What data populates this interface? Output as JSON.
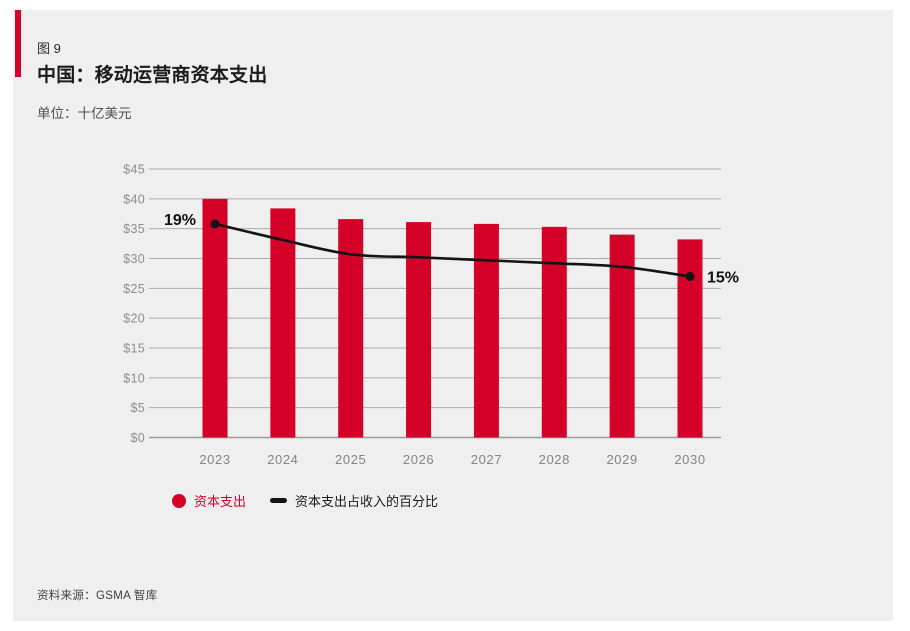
{
  "header": {
    "figure_label": "图 9",
    "title": "中国：移动运营商资本支出",
    "unit": "单位：十亿美元"
  },
  "legend": {
    "capex": "资本支出",
    "intensity": "资本支出占收入的百分比"
  },
  "footer": {
    "source": "资料来源：GSMA 智库"
  },
  "colors": {
    "accent": "#D50028",
    "bar": "#D50028",
    "line": "#141414",
    "dot": "#141414",
    "panel_bg": "#EFEFEF",
    "grid": "#ABABAB",
    "grid_baseline": "#9C9C9C",
    "axis_text": "#8E8E8E",
    "xaxis_text": "#858585",
    "pct_label": "#121212",
    "legend_capex_text": "#D50028",
    "legend_intensity_text": "#1A1A1A"
  },
  "chart_data": {
    "type": "bar",
    "title": "中国：移动运营商资本支出",
    "unit": "十亿美元",
    "categories": [
      "2023",
      "2024",
      "2025",
      "2026",
      "2027",
      "2028",
      "2029",
      "2030"
    ],
    "series": [
      {
        "name": "资本支出",
        "type": "bar",
        "values": [
          40.0,
          38.4,
          36.6,
          36.1,
          35.8,
          35.3,
          34.0,
          33.2
        ]
      },
      {
        "name": "资本支出占收入的百分比",
        "type": "line",
        "values_pct": [
          19,
          17.8,
          16.7,
          16.5,
          16.2,
          16.0,
          15.7,
          15
        ],
        "left_axis_equivalent": [
          35.8,
          33.1,
          30.7,
          30.2,
          29.7,
          29.2,
          28.6,
          27.0
        ],
        "first_label": "19%",
        "last_label": "15%"
      }
    ],
    "ylim": [
      0,
      45
    ],
    "ytick_step": 5,
    "ytick_labels": [
      "$0",
      "$5",
      "$10",
      "$15",
      "$20",
      "$25",
      "$30",
      "$35",
      "$40",
      "$45"
    ],
    "grid": "horizontal",
    "legend_position": "bottom-left"
  }
}
